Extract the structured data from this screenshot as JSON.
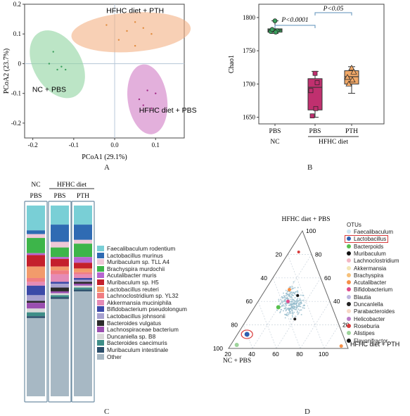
{
  "captions": {
    "a": "A",
    "b": "B",
    "c": "C",
    "d": "D"
  },
  "chart_data": [
    {
      "type": "scatter",
      "panel": "A",
      "xlabel": "PCoA1 (29.1%)",
      "ylabel": "PCoA2 (23.7%)",
      "xlim": [
        -0.22,
        0.17
      ],
      "ylim": [
        -0.25,
        0.2
      ],
      "xticks": [
        "-0.2",
        "-0.1",
        "0.0",
        "0.1"
      ],
      "yticks": [
        "0.2",
        "0.1",
        "0",
        "-0.1",
        "-0.2"
      ],
      "groups": [
        {
          "label": "HFHC diet + PTH",
          "color": "#f4b183",
          "points": [
            [
              -0.02,
              0.13
            ],
            [
              0.03,
              0.11
            ],
            [
              0.05,
              0.14
            ],
            [
              0.07,
              0.12
            ],
            [
              0.09,
              0.1
            ],
            [
              0.05,
              0.06
            ],
            [
              0.01,
              0.08
            ]
          ]
        },
        {
          "label": "NC + PBS",
          "color": "#90d3a0",
          "points": [
            [
              -0.15,
              0.04
            ],
            [
              -0.16,
              0.0
            ],
            [
              -0.13,
              -0.01
            ],
            [
              -0.12,
              -0.02
            ],
            [
              -0.14,
              -0.02
            ]
          ]
        },
        {
          "label": "HFHC diet + PBS",
          "color": "#d17bc4",
          "points": [
            [
              0.06,
              -0.12
            ],
            [
              0.08,
              -0.09
            ],
            [
              0.1,
              -0.1
            ],
            [
              0.07,
              -0.14
            ],
            [
              0.09,
              -0.15
            ]
          ]
        }
      ]
    },
    {
      "type": "box",
      "panel": "B",
      "ylabel": "Chao1",
      "ylim": [
        1640,
        1820
      ],
      "yticks": [
        "1650",
        "1700",
        "1750",
        "1800"
      ],
      "categories": [
        "PBS",
        "PBS",
        "PTH"
      ],
      "group_labels": [
        "NC",
        "HFHC diet"
      ],
      "annotations": [
        "P<0.0001",
        "P<0.05"
      ],
      "boxes": [
        {
          "category": "PBS",
          "group": "NC",
          "color": "#3a9e5c",
          "q1": 1778,
          "median": 1781,
          "q3": 1783,
          "min": 1776,
          "max": 1795,
          "points": [
            1795,
            1780,
            1779,
            1778,
            1782
          ]
        },
        {
          "category": "PBS",
          "group": "HFHC diet",
          "color": "#c0306f",
          "q1": 1661,
          "median": 1695,
          "q3": 1708,
          "min": 1650,
          "max": 1719,
          "points": [
            1716,
            1702,
            1690,
            1663,
            1652
          ]
        },
        {
          "category": "PTH",
          "group": "HFHC diet",
          "color": "#f0a868",
          "q1": 1700,
          "median": 1711,
          "q3": 1720,
          "min": 1686,
          "max": 1726,
          "points": [
            1724,
            1718,
            1710,
            1706,
            1700
          ]
        }
      ]
    },
    {
      "type": "bar",
      "panel": "C",
      "stacked": true,
      "group_labels": [
        "NC",
        "HFHC diet"
      ],
      "categories": [
        "PBS",
        "PBS",
        "PTH"
      ],
      "series": [
        {
          "name": "Faecalibaculum rodentium",
          "color": "#79cfd6",
          "values": [
            0.13,
            0.1,
            0.1
          ]
        },
        {
          "name": "Lactobacillus murinus",
          "color": "#2f6bb3",
          "values": [
            0.02,
            0.09,
            0.08
          ]
        },
        {
          "name": "Muribaculum sp. TLL A4",
          "color": "#f0c8d8",
          "values": [
            0.02,
            0.03,
            0.02
          ]
        },
        {
          "name": "Brachyspira murdochii",
          "color": "#3db54a",
          "values": [
            0.08,
            0.05,
            0.07
          ]
        },
        {
          "name": "Acutalibacter muris",
          "color": "#b766d0",
          "values": [
            0.01,
            0.01,
            0.03
          ]
        },
        {
          "name": "Muribaculum sp. H5",
          "color": "#c4202c",
          "values": [
            0.06,
            0.04,
            0.03
          ]
        },
        {
          "name": "Lactobacillus reuteri",
          "color": "#f29b6b",
          "values": [
            0.06,
            0.02,
            0.02
          ]
        },
        {
          "name": "Lachnoclostridium sp. YL32",
          "color": "#f07c82",
          "values": [
            0.02,
            0.02,
            0.01
          ]
        },
        {
          "name": "Akkermansia muciniphila",
          "color": "#e58bb6",
          "values": [
            0.02,
            0.04,
            0.02
          ]
        },
        {
          "name": "Bifidobacterium pseudolongum",
          "color": "#3b4aa8",
          "values": [
            0.05,
            0.01,
            0.01
          ]
        },
        {
          "name": "Lactobacillus johnsonii",
          "color": "#a7a1cf",
          "values": [
            0.03,
            0.02,
            0.01
          ]
        },
        {
          "name": "Bacteroides vulgatus",
          "color": "#2a2a2a",
          "values": [
            0.01,
            0.02,
            0.01
          ]
        },
        {
          "name": "Lachnospiraceae bacterium",
          "color": "#9a4fb0",
          "values": [
            0.03,
            0.01,
            0.01
          ]
        },
        {
          "name": "Duncaniella sp. B8",
          "color": "#d9d9d9",
          "values": [
            0.02,
            0.01,
            0.01
          ]
        },
        {
          "name": "Bacteroides caecimuris",
          "color": "#3e8e88",
          "values": [
            0.02,
            0.01,
            0.01
          ]
        },
        {
          "name": "Muribaculum intestinale",
          "color": "#2c4f6b",
          "values": [
            0.01,
            0.01,
            0.01
          ]
        },
        {
          "name": "Other",
          "color": "#a7b8c4",
          "values": [
            0.41,
            0.51,
            0.55
          ]
        }
      ]
    },
    {
      "type": "scatter",
      "panel": "D",
      "chart_kind": "ternary",
      "axes": [
        "HFHC diet + PBS",
        "NC + PBS",
        "HFHC diet + PTH"
      ],
      "ticks": [
        "20",
        "40",
        "60",
        "80",
        "100"
      ],
      "legend_title": "OTUs",
      "highlight": "Lactobacillus",
      "taxa": [
        {
          "name": "Faecalibaculum",
          "color": "#cfe6f2"
        },
        {
          "name": "Lactobacillus",
          "color": "#2e5fb0"
        },
        {
          "name": "Bacterpoids",
          "color": "#58c04e"
        },
        {
          "name": "Muribaculum",
          "color": "#111111"
        },
        {
          "name": "Lachnoclostridium",
          "color": "#f3b6c3"
        },
        {
          "name": "Akkermansia",
          "color": "#f2e6b5"
        },
        {
          "name": "Brachyspira",
          "color": "#f6c07a"
        },
        {
          "name": "Acutalibacter",
          "color": "#f59048"
        },
        {
          "name": "Bifidobacterium",
          "color": "#e04c8c"
        },
        {
          "name": "Blautia",
          "color": "#bcb7de"
        },
        {
          "name": "Duncanlella",
          "color": "#222222"
        },
        {
          "name": "Parabacteroides",
          "color": "#f7d6c4"
        },
        {
          "name": "Helicobacter",
          "color": "#bb7cc7"
        },
        {
          "name": "Roseburia",
          "color": "#d83b3b"
        },
        {
          "name": "Alistipes",
          "color": "#9dd39b"
        },
        {
          "name": "Flavonifractor",
          "color": "#111111"
        }
      ]
    }
  ]
}
